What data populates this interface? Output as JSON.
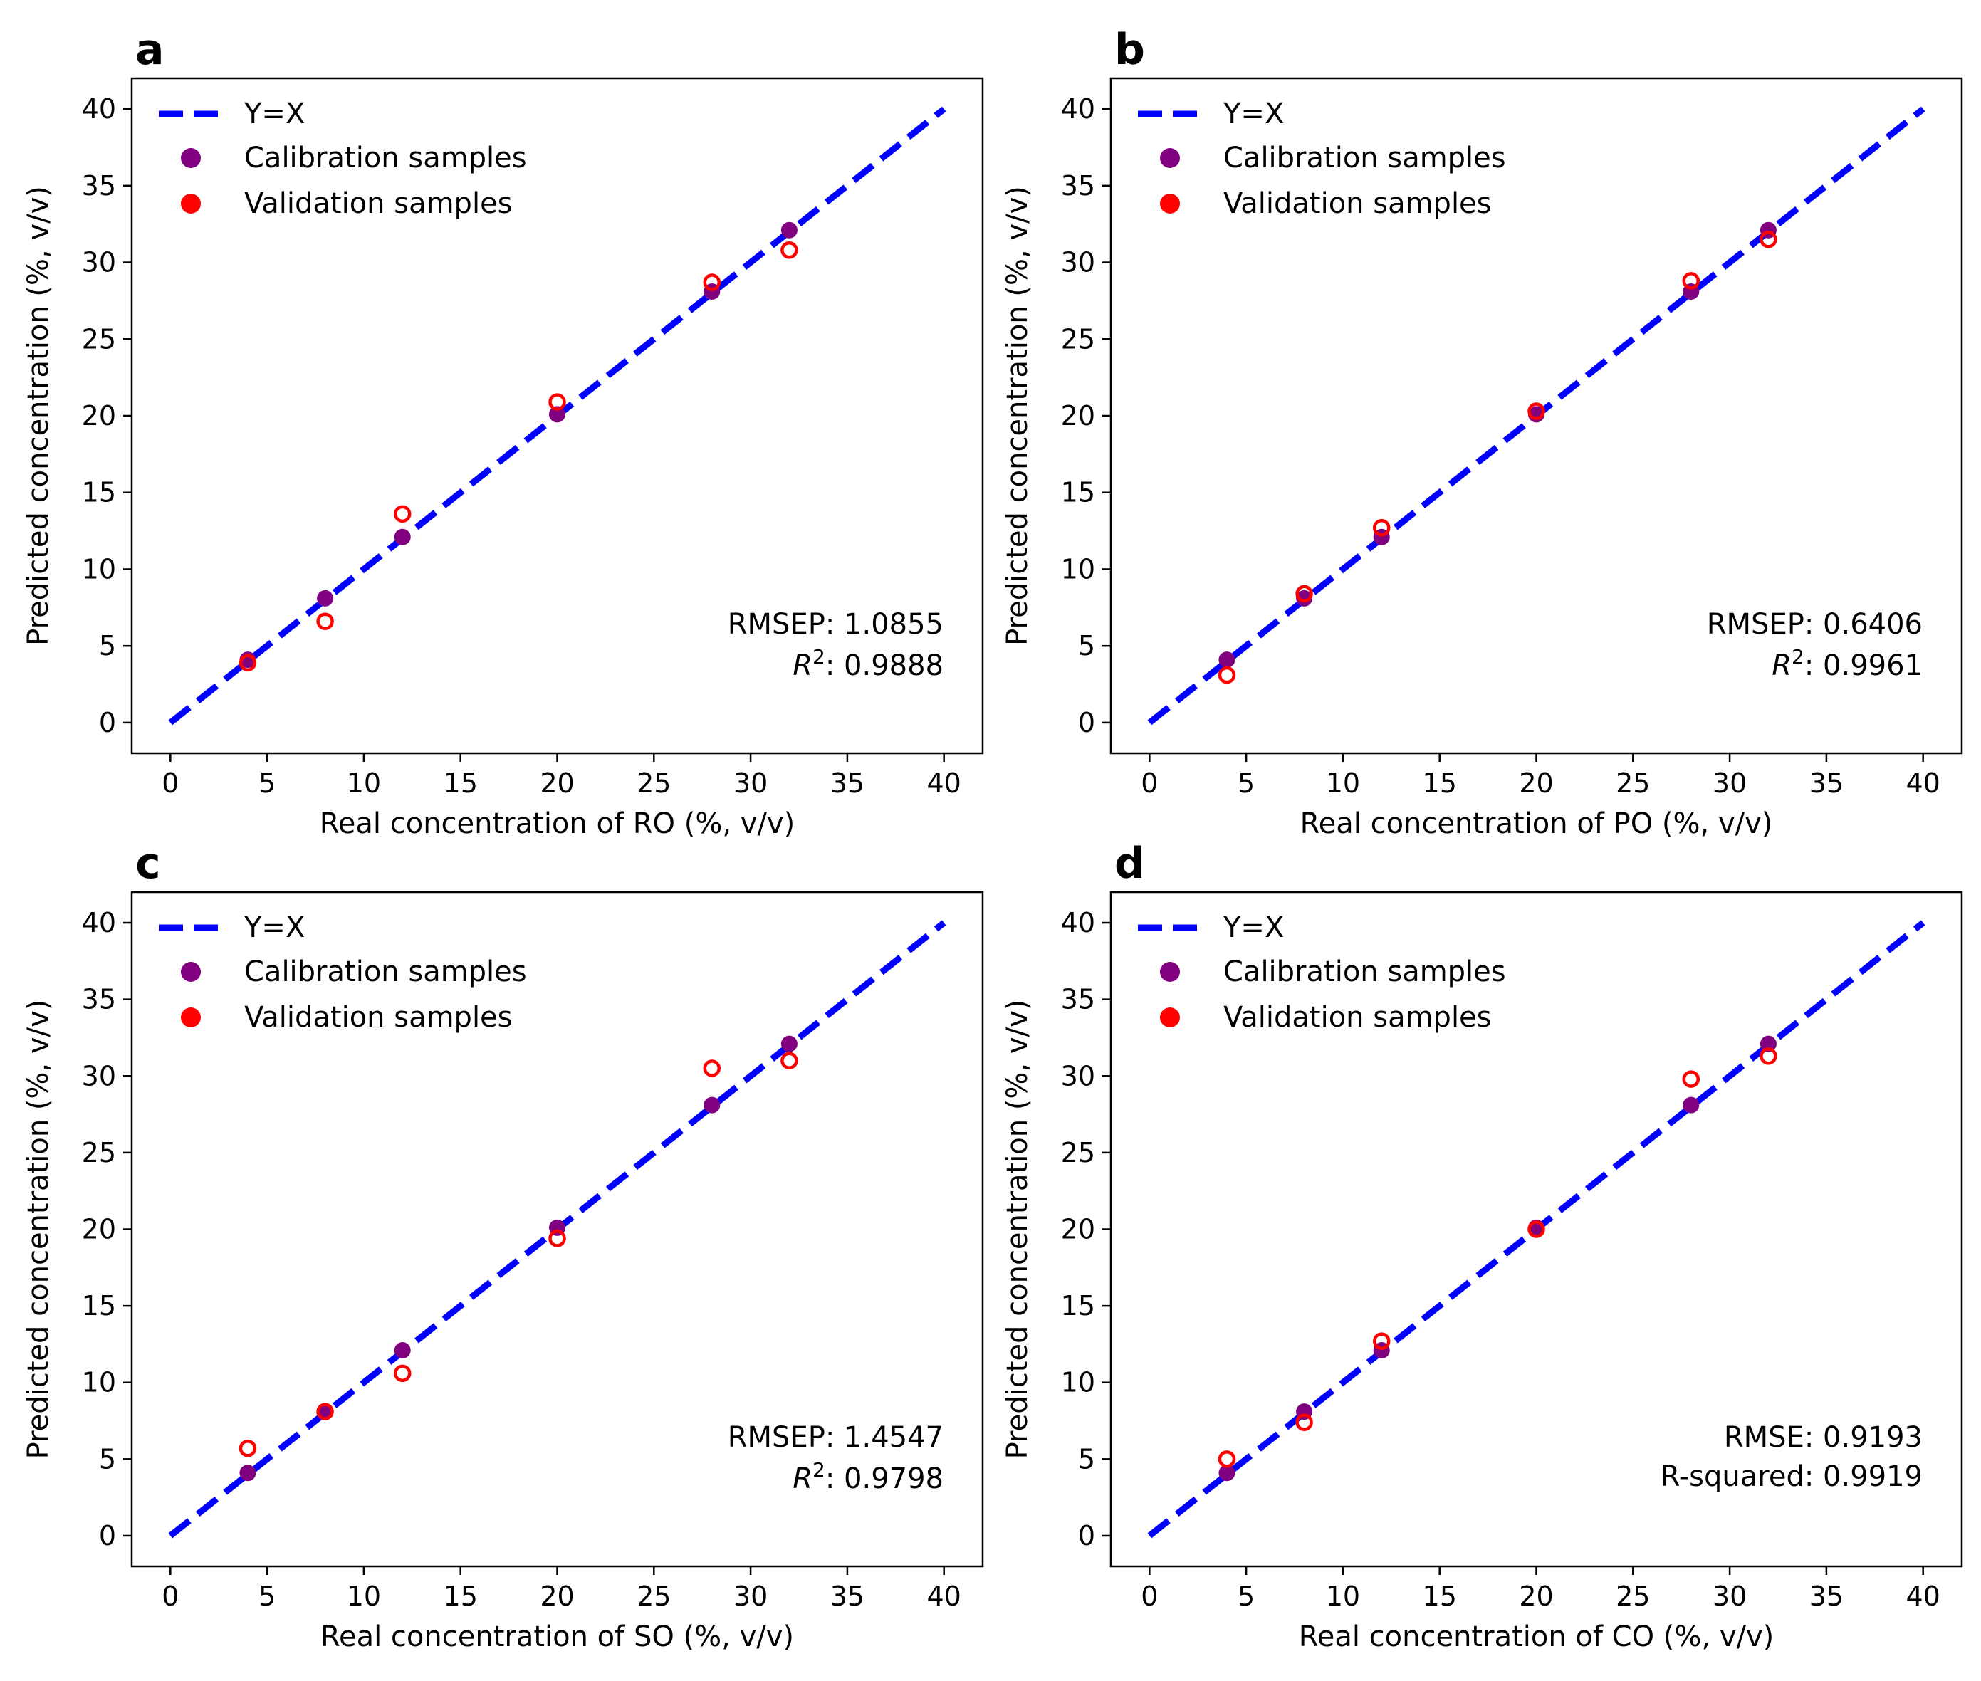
{
  "chart_data": [
    {
      "type": "scatter",
      "panel": "a",
      "xlabel": "Real concentration of RO (%, v/v)",
      "ylabel": "Predicted concentration (%, v/v)",
      "xlim": [
        -2,
        42
      ],
      "ylim": [
        -2,
        42
      ],
      "xticks": [
        0,
        5,
        10,
        15,
        20,
        25,
        30,
        35,
        40
      ],
      "yticks": [
        0,
        5,
        10,
        15,
        20,
        25,
        30,
        35,
        40
      ],
      "legend": [
        "Y=X",
        "Calibration samples",
        "Validation samples"
      ],
      "series": [
        {
          "name": "Y=X",
          "kind": "line",
          "x": [
            0,
            40
          ],
          "y": [
            0,
            40
          ],
          "color": "#0000ff"
        },
        {
          "name": "Calibration samples",
          "kind": "points",
          "color": "#800080",
          "x": [
            4,
            8,
            12,
            20,
            28,
            32
          ],
          "y": [
            4.1,
            8.1,
            12.1,
            20.1,
            28.1,
            32.1
          ]
        },
        {
          "name": "Validation samples",
          "kind": "points",
          "color": "#ff0000",
          "x": [
            4,
            8,
            12,
            20,
            28,
            32
          ],
          "y": [
            3.9,
            6.6,
            13.6,
            20.9,
            28.7,
            30.8
          ]
        }
      ],
      "stats": {
        "rmse_label": "RMSEP: 1.0855",
        "r2_prefix": "R",
        "r2_sup": "2",
        "r2_value": ": 0.9888",
        "r2_label": ""
      }
    },
    {
      "type": "scatter",
      "panel": "b",
      "xlabel": "Real concentration of PO (%, v/v)",
      "ylabel": "Predicted concentration (%, v/v)",
      "xlim": [
        -2,
        42
      ],
      "ylim": [
        -2,
        42
      ],
      "xticks": [
        0,
        5,
        10,
        15,
        20,
        25,
        30,
        35,
        40
      ],
      "yticks": [
        0,
        5,
        10,
        15,
        20,
        25,
        30,
        35,
        40
      ],
      "legend": [
        "Y=X",
        "Calibration samples",
        "Validation samples"
      ],
      "series": [
        {
          "name": "Y=X",
          "kind": "line",
          "x": [
            0,
            40
          ],
          "y": [
            0,
            40
          ],
          "color": "#0000ff"
        },
        {
          "name": "Calibration samples",
          "kind": "points",
          "color": "#800080",
          "x": [
            4,
            8,
            12,
            20,
            28,
            32
          ],
          "y": [
            4.1,
            8.1,
            12.1,
            20.1,
            28.1,
            32.1
          ]
        },
        {
          "name": "Validation samples",
          "kind": "points",
          "color": "#ff0000",
          "x": [
            4,
            8,
            12,
            20,
            28,
            32
          ],
          "y": [
            3.1,
            8.4,
            12.7,
            20.3,
            28.8,
            31.5
          ]
        }
      ],
      "stats": {
        "rmse_label": "RMSEP: 0.6406",
        "r2_prefix": "R",
        "r2_sup": "2",
        "r2_value": ": 0.9961",
        "r2_label": ""
      }
    },
    {
      "type": "scatter",
      "panel": "c",
      "xlabel": "Real concentration of SO (%, v/v)",
      "ylabel": "Predicted concentration (%, v/v)",
      "xlim": [
        -2,
        42
      ],
      "ylim": [
        -2,
        42
      ],
      "xticks": [
        0,
        5,
        10,
        15,
        20,
        25,
        30,
        35,
        40
      ],
      "yticks": [
        0,
        5,
        10,
        15,
        20,
        25,
        30,
        35,
        40
      ],
      "legend": [
        "Y=X",
        "Calibration samples",
        "Validation samples"
      ],
      "series": [
        {
          "name": "Y=X",
          "kind": "line",
          "x": [
            0,
            40
          ],
          "y": [
            0,
            40
          ],
          "color": "#0000ff"
        },
        {
          "name": "Calibration samples",
          "kind": "points",
          "color": "#800080",
          "x": [
            4,
            8,
            12,
            20,
            28,
            32
          ],
          "y": [
            4.1,
            8.1,
            12.1,
            20.1,
            28.1,
            32.1
          ]
        },
        {
          "name": "Validation samples",
          "kind": "points",
          "color": "#ff0000",
          "x": [
            4,
            8,
            12,
            20,
            28,
            32
          ],
          "y": [
            5.7,
            8.1,
            10.6,
            19.4,
            30.5,
            31.0
          ]
        }
      ],
      "stats": {
        "rmse_label": "RMSEP: 1.4547",
        "r2_prefix": "R",
        "r2_sup": "2",
        "r2_value": ": 0.9798",
        "r2_label": ""
      }
    },
    {
      "type": "scatter",
      "panel": "d",
      "xlabel": "Real concentration of CO (%, v/v)",
      "ylabel": "Predicted concentration (%, v/v)",
      "xlim": [
        -2,
        42
      ],
      "ylim": [
        -2,
        42
      ],
      "xticks": [
        0,
        5,
        10,
        15,
        20,
        25,
        30,
        35,
        40
      ],
      "yticks": [
        0,
        5,
        10,
        15,
        20,
        25,
        30,
        35,
        40
      ],
      "legend": [
        "Y=X",
        "Calibration samples",
        "Validation samples"
      ],
      "series": [
        {
          "name": "Y=X",
          "kind": "line",
          "x": [
            0,
            40
          ],
          "y": [
            0,
            40
          ],
          "color": "#0000ff"
        },
        {
          "name": "Calibration samples",
          "kind": "points",
          "color": "#800080",
          "x": [
            4,
            8,
            12,
            20,
            28,
            32
          ],
          "y": [
            4.1,
            8.1,
            12.1,
            20.1,
            28.1,
            32.1
          ]
        },
        {
          "name": "Validation samples",
          "kind": "points",
          "color": "#ff0000",
          "x": [
            4,
            8,
            12,
            20,
            28,
            32
          ],
          "y": [
            5.0,
            7.4,
            12.7,
            20.0,
            29.8,
            31.3
          ]
        }
      ],
      "stats": {
        "rmse_label": "RMSE: 0.9193",
        "r2_prefix": "",
        "r2_sup": "",
        "r2_value": "",
        "r2_label": "R-squared: 0.9919"
      }
    }
  ]
}
